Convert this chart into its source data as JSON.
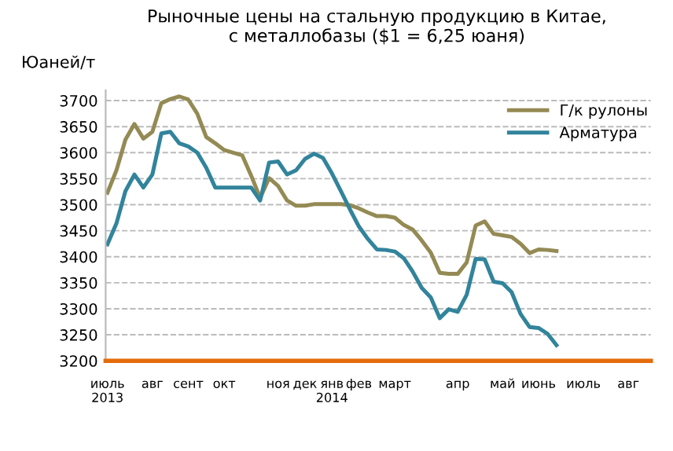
{
  "chart_data": {
    "type": "line",
    "title": "Рыночные цены на стальную продукцию в Китае,\nс металлобазы ($1 = 6,25 юаня)",
    "ylabel": "Юаней/т",
    "categories": [
      "июль\n2013",
      null,
      null,
      null,
      null,
      "авг",
      null,
      null,
      null,
      "сент",
      null,
      null,
      null,
      "окт",
      null,
      null,
      null,
      null,
      null,
      "ноя",
      null,
      null,
      "дек",
      null,
      null,
      "янв\n2014",
      null,
      null,
      "фев",
      null,
      null,
      null,
      "март",
      null,
      null,
      null,
      null,
      null,
      null,
      "апр",
      null,
      null,
      null,
      null,
      "май",
      null,
      null,
      null,
      "июнь",
      null,
      null,
      null,
      null,
      "июль",
      null,
      null,
      null,
      null,
      "авг",
      null,
      null
    ],
    "series": [
      {
        "name": "Г/к рулоны",
        "color": "#948a54",
        "values": [
          3523,
          3566,
          3625,
          3655,
          3627,
          3640,
          3695,
          3703,
          3708,
          3702,
          3675,
          3630,
          3618,
          3605,
          3600,
          3595,
          3556,
          3513,
          3551,
          3536,
          3508,
          3498,
          3498,
          3501,
          3501,
          3501,
          3501,
          3499,
          3493,
          3485,
          3478,
          3478,
          3475,
          3461,
          3452,
          3431,
          3408,
          3369,
          3367,
          3367,
          3389,
          3460,
          3468,
          3444,
          3441,
          3438,
          3425,
          3407,
          3414,
          3413,
          3411,
          null,
          null,
          null,
          null,
          null,
          null,
          null,
          null,
          null,
          null
        ]
      },
      {
        "name": "Арматура",
        "color": "#31849b",
        "values": [
          3424,
          3464,
          3526,
          3558,
          3533,
          3558,
          3637,
          3640,
          3618,
          3612,
          3600,
          3571,
          3533,
          3533,
          3533,
          3533,
          3533,
          3508,
          3581,
          3583,
          3558,
          3566,
          3588,
          3598,
          3590,
          3560,
          3526,
          3491,
          3458,
          3434,
          3414,
          3413,
          3410,
          3397,
          3371,
          3340,
          3322,
          3282,
          3299,
          3294,
          3327,
          3396,
          3395,
          3352,
          3349,
          3332,
          3290,
          3265,
          3263,
          3252,
          3230,
          null,
          null,
          null,
          null,
          null,
          null,
          null,
          null,
          null,
          null
        ]
      }
    ],
    "ylim": [
      3200,
      3720
    ],
    "yticks": [
      3200,
      3250,
      3300,
      3350,
      3400,
      3450,
      3500,
      3550,
      3600,
      3650,
      3700
    ],
    "grid": "y",
    "legend": "top right",
    "marker": "none",
    "line_style": "solid"
  }
}
